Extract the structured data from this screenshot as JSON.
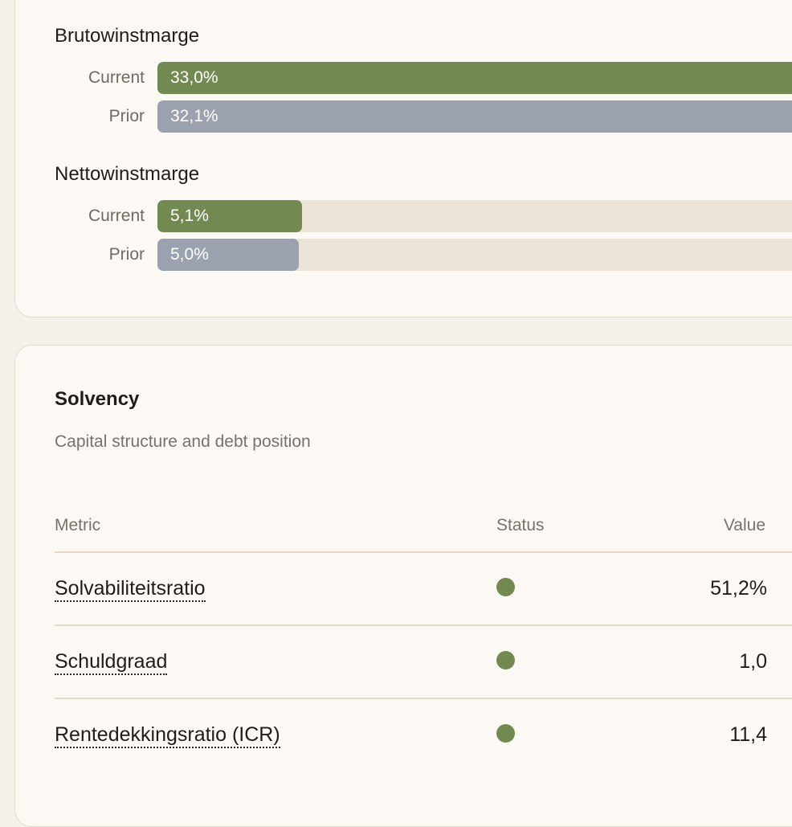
{
  "margin_card": {
    "groups": [
      {
        "title": "Brutowinstmarge",
        "bars": [
          {
            "label": "Current",
            "value_text": "33,0%",
            "value": 33.0,
            "kind": "current"
          },
          {
            "label": "Prior",
            "value_text": "32,1%",
            "value": 32.1,
            "kind": "prior"
          }
        ]
      },
      {
        "title": "Nettowinstmarge",
        "bars": [
          {
            "label": "Current",
            "value_text": "5,1%",
            "value": 5.1,
            "kind": "current"
          },
          {
            "label": "Prior",
            "value_text": "5,0%",
            "value": 5.0,
            "kind": "prior"
          }
        ]
      }
    ]
  },
  "solvency": {
    "title": "Solvency",
    "subtitle": "Capital structure and debt position",
    "headers": {
      "metric": "Metric",
      "status": "Status",
      "value": "Value"
    },
    "rows": [
      {
        "metric": "Solvabiliteitsratio",
        "status": "good",
        "value": "51,2%"
      },
      {
        "metric": "Schuldgraad",
        "status": "good",
        "value": "1,0"
      },
      {
        "metric": "Rentedekkingsratio (ICR)",
        "status": "good",
        "value": "11,4"
      }
    ]
  },
  "colors": {
    "current_bar": "#728a51",
    "prior_bar": "#9ba1ae",
    "track": "#ede4d8",
    "status_good": "#728a51"
  }
}
